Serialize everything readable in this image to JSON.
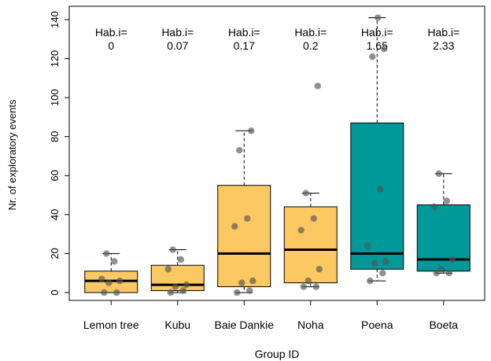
{
  "chart_data": {
    "type": "box",
    "xlabel": "Group ID",
    "ylabel": "Nr. of exploratory events",
    "ylim": [
      0,
      140
    ],
    "yticks": [
      0,
      20,
      40,
      60,
      80,
      100,
      120,
      140
    ],
    "annotation_prefix": "Hab.i=",
    "colors": {
      "light": "#fcc862",
      "dark": "#009999",
      "point": "#555555"
    },
    "groups": [
      {
        "name": "Lemon tree",
        "hab_i": "0",
        "color": "light",
        "whisker_low": 0,
        "q1": 0,
        "median": 6,
        "q3": 11,
        "whisker_high": 20,
        "points": [
          0,
          0,
          5,
          6,
          7,
          16,
          20
        ]
      },
      {
        "name": "Kubu",
        "hab_i": "0.07",
        "color": "light",
        "whisker_low": 0,
        "q1": 1,
        "median": 4,
        "q3": 14,
        "whisker_high": 22,
        "points": [
          0,
          1,
          3,
          4,
          12,
          17,
          22
        ]
      },
      {
        "name": "Baie Dankie",
        "hab_i": "0.17",
        "color": "light",
        "whisker_low": 0,
        "q1": 3,
        "median": 20,
        "q3": 55,
        "whisker_high": 83,
        "points": [
          0,
          1,
          5,
          6,
          34,
          38,
          73,
          83
        ]
      },
      {
        "name": "Noha",
        "hab_i": "0.2",
        "color": "light",
        "whisker_low": 3,
        "q1": 5,
        "median": 22,
        "q3": 44,
        "whisker_high": 51,
        "points": [
          3,
          3,
          6,
          12,
          32,
          38,
          51,
          106
        ]
      },
      {
        "name": "Poena",
        "hab_i": "1.65",
        "color": "dark",
        "whisker_low": 6,
        "q1": 12,
        "median": 20,
        "q3": 87,
        "whisker_high": 141,
        "points": [
          6,
          10,
          15,
          16,
          24,
          53,
          121,
          125,
          141
        ]
      },
      {
        "name": "Boeta",
        "hab_i": "2.33",
        "color": "dark",
        "whisker_low": 10,
        "q1": 11,
        "median": 17,
        "q3": 45,
        "whisker_high": 61,
        "points": [
          10,
          10,
          12,
          17,
          44,
          47,
          61
        ]
      }
    ]
  }
}
